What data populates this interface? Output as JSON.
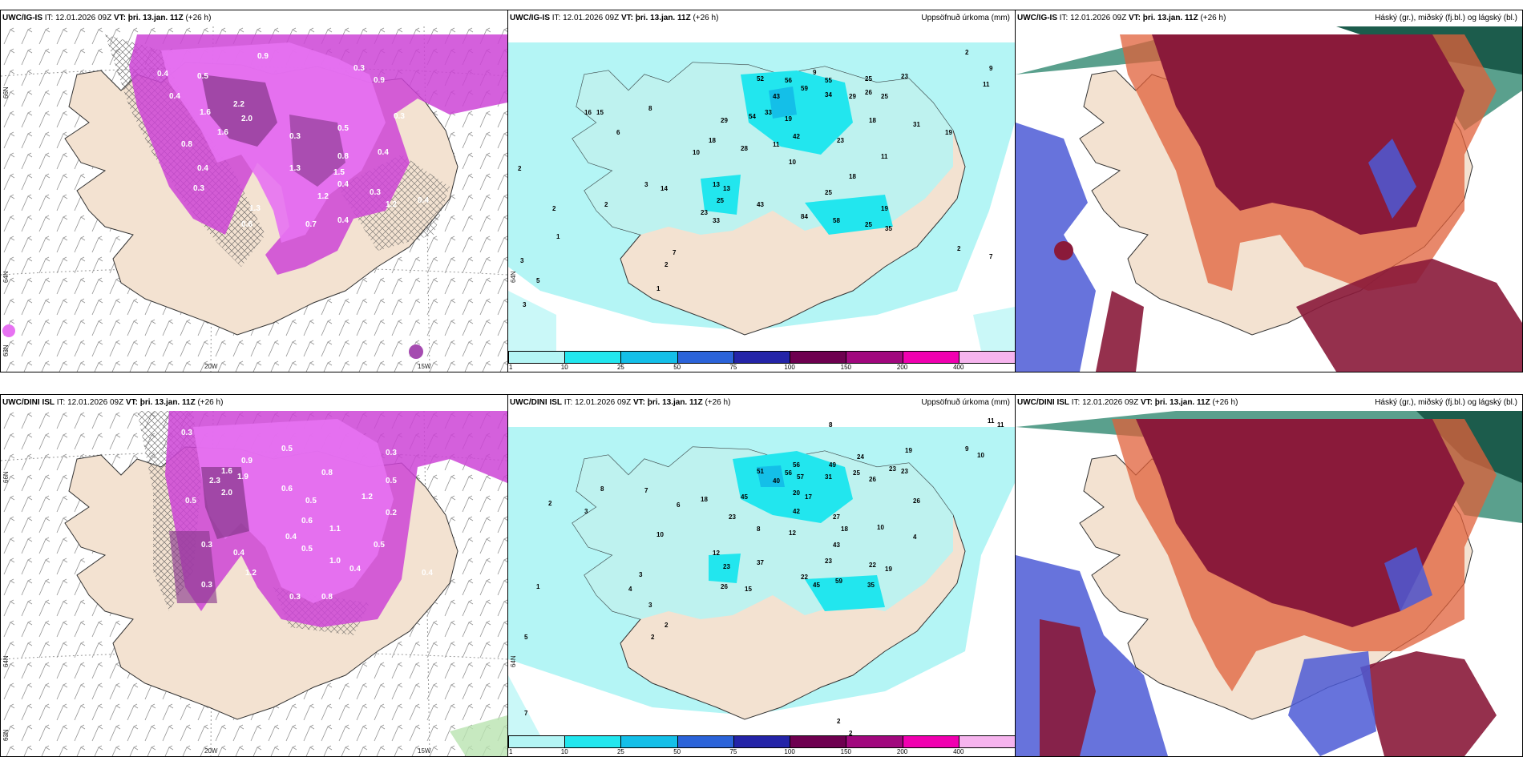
{
  "panels": [
    {
      "model": "UWC/IG-IS",
      "it_label": "IT:",
      "it_time": "12.01.2026 09Z",
      "vt_label": "VT:",
      "vt_time": "þri. 13.jan. 11Z",
      "lead": "(+26 h)",
      "right_title": "",
      "lon1": "20W",
      "lon2": "15W",
      "lat1": "66N",
      "lat2": "64N",
      "lat3": "63N"
    },
    {
      "model": "UWC/IG-IS",
      "it_label": "IT:",
      "it_time": "12.01.2026 09Z",
      "vt_label": "VT:",
      "vt_time": "þri. 13.jan. 11Z",
      "lead": "(+26 h)",
      "right_title": "Uppsöfnuð úrkoma (mm)",
      "lat2": "64N"
    },
    {
      "model": "UWC/IG-IS",
      "it_label": "IT:",
      "it_time": "12.01.2026 09Z",
      "vt_label": "VT:",
      "vt_time": "þri. 13.jan. 11Z",
      "lead": "(+26 h)",
      "right_title": "Háský (gr.), miðský (fj.bl.) og lágský (bl.)"
    },
    {
      "model": "UWC/DINI ISL",
      "it_label": "IT:",
      "it_time": "12.01.2026 09Z",
      "vt_label": "VT:",
      "vt_time": "þri. 13.jan. 11Z",
      "lead": "(+26 h)",
      "right_title": "",
      "lon1": "20W",
      "lon2": "15W",
      "lat1": "66N",
      "lat2": "64N",
      "lat3": "63N"
    },
    {
      "model": "UWC/DINI ISL",
      "it_label": "IT:",
      "it_time": "12.01.2026 09Z",
      "vt_label": "VT:",
      "vt_time": "þri. 13.jan. 11Z",
      "lead": "(+26 h)",
      "right_title": "Uppsöfnuð úrkoma (mm)",
      "lat2": "64N"
    },
    {
      "model": "UWC/DINI ISL",
      "it_label": "IT:",
      "it_time": "12.01.2026 09Z",
      "vt_label": "VT:",
      "vt_time": "þri. 13.jan. 11Z",
      "lead": "(+26 h)",
      "right_title": "Háský (gr.), miðský (fj.bl.) og lágský (bl.)"
    }
  ],
  "precip_legend": {
    "labels": [
      "1",
      "10",
      "25",
      "50",
      "75",
      "100",
      "150",
      "200",
      "400"
    ],
    "colors": [
      "#b4f5f5",
      "#22e6ee",
      "#14bfe8",
      "#2b63d9",
      "#2424a8",
      "#6e0050",
      "#a1087e",
      "#f000b0",
      "#f6b4ee"
    ]
  },
  "snow_numbers_top": [
    "0.9",
    "0.4",
    "0.5",
    "0.4",
    "1.6",
    "2.0",
    "1.6",
    "2.2",
    "0.8",
    "1.3",
    "0.4",
    "0.3",
    "0.5",
    "0.9",
    "0.3",
    "0.4",
    "0.3",
    "1.2",
    "1.5",
    "0.4",
    "0.3",
    "1.2",
    "0.8",
    "0.4",
    "0.7",
    "0.4",
    "1.3",
    "0.3",
    "0.6"
  ],
  "snow_numbers_bottom": [
    "0.3",
    "0.5",
    "0.9",
    "1.6",
    "2.3",
    "2.0",
    "1.9",
    "0.6",
    "0.5",
    "0.8",
    "0.3",
    "0.5",
    "0.2",
    "1.2",
    "1.1",
    "0.6",
    "0.4",
    "0.5",
    "1.0",
    "0.3",
    "0.4",
    "1.2",
    "0.3",
    "0.5",
    "0.8",
    "0.4",
    "0.5",
    "0.4",
    "0.3"
  ],
  "precip_numbers_top": [
    "2",
    "9",
    "9",
    "11",
    "55",
    "25",
    "23",
    "52",
    "56",
    "59",
    "34",
    "29",
    "26",
    "25",
    "43",
    "33",
    "54",
    "29",
    "19",
    "18",
    "31",
    "19",
    "42",
    "23",
    "18",
    "28",
    "11",
    "10",
    "11",
    "13",
    "13",
    "25",
    "14",
    "43",
    "18",
    "25",
    "23",
    "84",
    "58",
    "19",
    "33",
    "25",
    "35",
    "10",
    "16",
    "15",
    "7",
    "6",
    "8",
    "5",
    "3",
    "2",
    "2",
    "2",
    "1",
    "2",
    "3",
    "3",
    "7",
    "2",
    "1"
  ],
  "precip_numbers_bottom": [
    "8",
    "11",
    "11",
    "9",
    "10",
    "19",
    "24",
    "49",
    "23",
    "23",
    "56",
    "51",
    "56",
    "25",
    "31",
    "26",
    "40",
    "57",
    "20",
    "17",
    "45",
    "26",
    "18",
    "23",
    "42",
    "27",
    "8",
    "12",
    "18",
    "10",
    "43",
    "4",
    "23",
    "12",
    "23",
    "37",
    "22",
    "22",
    "45",
    "19",
    "15",
    "26",
    "59",
    "35",
    "5",
    "7",
    "8",
    "3",
    "2",
    "6",
    "3",
    "10",
    "3",
    "4",
    "2",
    "2",
    "2",
    "2",
    "1",
    "7"
  ]
}
